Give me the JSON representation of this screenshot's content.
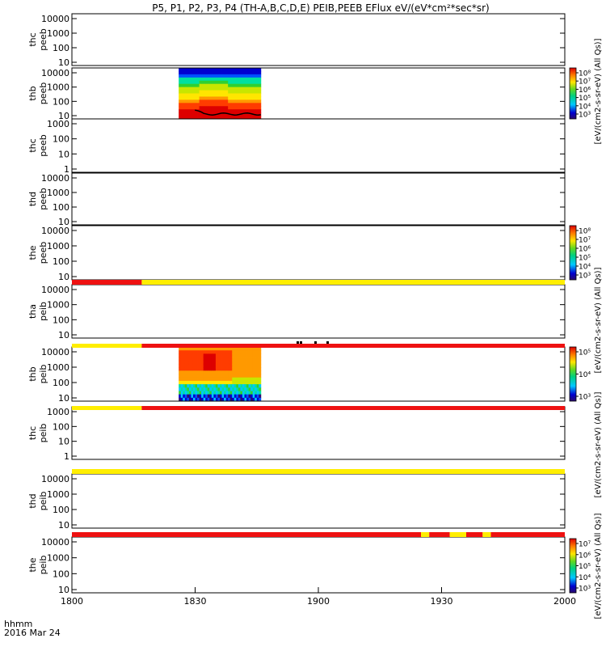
{
  "chart_data": {
    "type": "heatmap",
    "title": "P5, P1, P2, P3, P4 (TH-A,B,C,D,E) PEIB,PEEB EFlux eV/(eV*cm²*sec*sr)",
    "time_label": "hhmm",
    "date_label": "2016 Mar 24",
    "x_ticks": [
      "1800",
      "1830",
      "1900",
      "1930",
      "2000"
    ],
    "xlim_minutes": [
      0,
      120
    ],
    "colorbar_label": "[eV/(cm2-s-sr-eV) (All Qs)]",
    "colors": {
      "bar_red": "#ee1111",
      "bar_yellow": "#ffee00",
      "spectrogram": [
        "#2b0a6b",
        "#0000d0",
        "#0050ff",
        "#00c8ff",
        "#00e0a0",
        "#30d030",
        "#c8e600",
        "#ffe600",
        "#ff9900",
        "#ff3c00",
        "#dd0000"
      ]
    },
    "panels": [
      {
        "name": "thc",
        "label2": "peeb",
        "y_ticks": [
          "10",
          "100",
          "1000",
          "10000"
        ],
        "spectrogram": false
      },
      {
        "name": "thb",
        "label2": "peeb",
        "y_ticks": [
          "10",
          "100",
          "1000",
          "10000"
        ],
        "spectrogram": true,
        "data_span_minutes": [
          26,
          46
        ]
      },
      {
        "name": "thc",
        "label2": "peeb",
        "y_ticks": [
          "1",
          "10",
          "100",
          "1000"
        ],
        "spectrogram": false
      },
      {
        "name": "thd",
        "label2": "peeb",
        "y_ticks": [
          "10",
          "100",
          "1000",
          "10000"
        ],
        "spectrogram": false
      },
      {
        "name": "the",
        "label2": "peeb",
        "y_ticks": [
          "10",
          "100",
          "1000",
          "10000"
        ],
        "spectrogram": false
      },
      {
        "name": "tha",
        "label2": "peib",
        "y_ticks": [
          "10",
          "100",
          "1000",
          "10000"
        ],
        "spectrogram": false
      },
      {
        "name": "thb",
        "label2": "peib",
        "y_ticks": [
          "10",
          "100",
          "1000",
          "10000"
        ],
        "spectrogram": true,
        "data_span_minutes": [
          26,
          46
        ]
      },
      {
        "name": "thc",
        "label2": "peib",
        "y_ticks": [
          "1",
          "10",
          "100",
          "1000"
        ],
        "spectrogram": false
      },
      {
        "name": "thd",
        "label2": "peib",
        "y_ticks": [
          "10",
          "100",
          "1000",
          "10000"
        ],
        "spectrogram": false
      },
      {
        "name": "the",
        "label2": "peib",
        "y_ticks": [
          "10",
          "100",
          "1000",
          "10000"
        ],
        "spectrogram": false
      }
    ],
    "status_bars": [
      {
        "segments": [
          {
            "from": 0,
            "to": 17,
            "color": "red"
          },
          {
            "from": 17,
            "to": 120,
            "color": "yellow"
          }
        ]
      },
      {
        "segments": [
          {
            "from": 0,
            "to": 17,
            "color": "yellow"
          },
          {
            "from": 17,
            "to": 120,
            "color": "red"
          }
        ]
      },
      {
        "segments": [
          {
            "from": 0,
            "to": 17,
            "color": "yellow"
          },
          {
            "from": 17,
            "to": 120,
            "color": "red"
          }
        ]
      },
      {
        "segments": [
          {
            "from": 0,
            "to": 120,
            "color": "yellow"
          }
        ]
      },
      {
        "segments": [
          {
            "from": 0,
            "to": 85,
            "color": "red"
          },
          {
            "from": 85,
            "to": 87,
            "color": "yellow"
          },
          {
            "from": 87,
            "to": 92,
            "color": "red"
          },
          {
            "from": 92,
            "to": 96,
            "color": "yellow"
          },
          {
            "from": 96,
            "to": 100,
            "color": "red"
          },
          {
            "from": 100,
            "to": 102,
            "color": "yellow"
          },
          {
            "from": 102,
            "to": 120,
            "color": "red"
          }
        ]
      }
    ],
    "colorbars": [
      {
        "ticks": [
          "10³",
          "10⁴",
          "10⁵",
          "10⁶",
          "10⁷",
          "10⁸"
        ]
      },
      {
        "ticks": [
          "10³",
          "10⁴",
          "10⁵",
          "10⁶",
          "10⁷",
          "10⁸"
        ]
      },
      {
        "ticks": [
          "10³",
          "10⁴",
          "10⁵"
        ]
      },
      {
        "ticks": [
          "10³",
          "10⁴",
          "10⁵",
          "10⁶",
          "10⁷"
        ]
      }
    ]
  }
}
